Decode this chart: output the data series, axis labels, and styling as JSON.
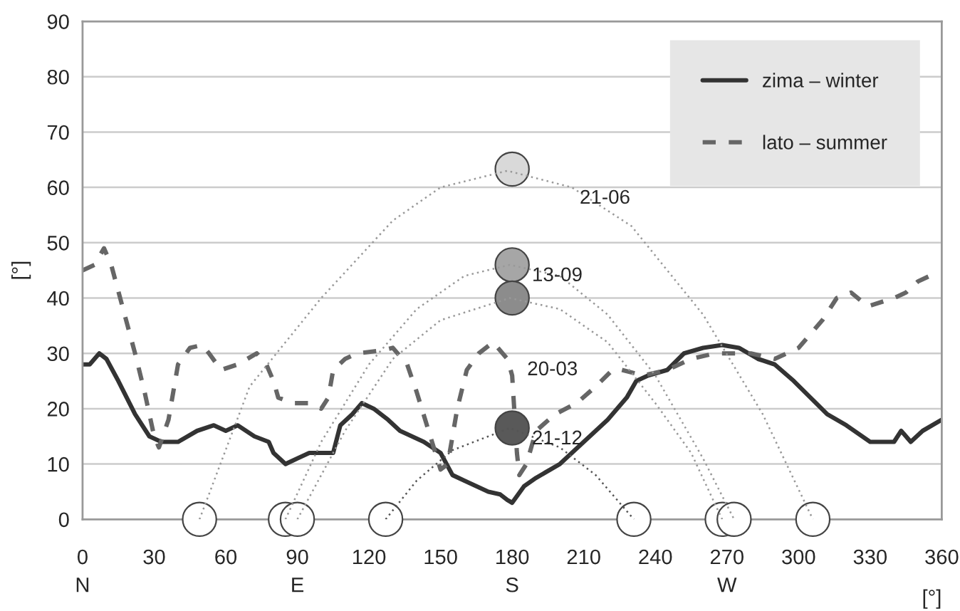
{
  "chart_data": {
    "type": "line",
    "xlabel": "[°]",
    "ylabel": "[°]",
    "xlim": [
      0,
      360
    ],
    "xticks": [
      0,
      30,
      60,
      90,
      120,
      150,
      180,
      210,
      240,
      270,
      300,
      330,
      360
    ],
    "ylim": [
      0,
      90
    ],
    "yticks": [
      0,
      10,
      20,
      30,
      40,
      50,
      60,
      70,
      80,
      90
    ],
    "grid": "y",
    "legend": "top right",
    "series": [
      {
        "name": "zima – winter",
        "line_style": "solid",
        "color": "#333333",
        "x": [
          0,
          3,
          7,
          10,
          15,
          22,
          28,
          33,
          40,
          48,
          55,
          60,
          65,
          72,
          78,
          80,
          85,
          90,
          95,
          105,
          108,
          113,
          117,
          122,
          128,
          133,
          143,
          150,
          155,
          160,
          165,
          170,
          175,
          178,
          180,
          185,
          190,
          200,
          210,
          220,
          228,
          232,
          237,
          245,
          252,
          260,
          268,
          275,
          283,
          290,
          298,
          305,
          312,
          320,
          330,
          340,
          343,
          347,
          352,
          360
        ],
        "values": [
          28,
          28,
          30,
          29,
          25,
          19,
          15,
          14,
          14,
          16,
          17,
          16,
          17,
          15,
          14,
          12,
          10,
          11,
          12,
          12,
          17,
          19,
          21,
          20,
          18,
          16,
          14,
          12,
          8,
          7,
          6,
          5,
          4.5,
          3.5,
          3,
          6,
          7.5,
          10,
          14,
          18,
          22,
          25,
          26,
          27,
          30,
          31,
          31.5,
          31,
          29,
          28,
          25,
          22,
          19,
          17,
          14,
          14,
          16,
          14,
          16,
          18
        ]
      },
      {
        "name": "lato – summer",
        "line_style": "dashed",
        "color": "#666666",
        "x": [
          0,
          5,
          9,
          12,
          17,
          22,
          26,
          30,
          32,
          36,
          40,
          45,
          50,
          53,
          58,
          65,
          73,
          77,
          80,
          82,
          88,
          95,
          100,
          103,
          105,
          110,
          115,
          125,
          130,
          132,
          136,
          140,
          145,
          150,
          153,
          157,
          161,
          166,
          172,
          176,
          178,
          180,
          182,
          183,
          186,
          190,
          198,
          207,
          215,
          222,
          226,
          235,
          245,
          255,
          265,
          280,
          290,
          300,
          310,
          316,
          322,
          329,
          340,
          345,
          350,
          355,
          360
        ],
        "values": [
          45,
          46,
          49,
          46,
          38,
          30,
          23,
          15,
          13,
          18,
          28,
          31,
          31.5,
          30,
          27,
          28,
          30,
          28,
          25,
          22,
          21,
          21,
          20,
          22,
          27,
          29,
          30,
          30.5,
          31,
          30,
          28,
          23,
          16,
          9,
          10,
          20,
          27,
          30,
          32,
          30,
          29,
          26,
          12,
          8,
          10,
          16,
          19,
          21,
          24,
          27,
          27,
          26,
          27,
          29,
          30,
          30,
          29,
          31,
          36,
          40,
          41,
          38.5,
          40,
          41,
          43,
          44,
          44
        ]
      },
      {
        "type": "line",
        "line_style": "dotted",
        "color": "#999999",
        "x": [
          49,
          70,
          100,
          130,
          150,
          178,
          205,
          230,
          260,
          285,
          306
        ],
        "values": [
          0,
          24,
          40,
          54,
          60,
          63,
          60,
          53,
          37,
          19,
          0
        ]
      },
      {
        "type": "line",
        "line_style": "dotted",
        "color": "#999999",
        "x": [
          85,
          100,
          120,
          140,
          160,
          179,
          200,
          220,
          240,
          260,
          273
        ],
        "values": [
          0,
          14,
          28,
          38,
          44,
          46,
          44,
          37,
          26,
          11,
          0
        ]
      },
      {
        "type": "line",
        "line_style": "dotted",
        "color": "#999999",
        "x": [
          90,
          110,
          130,
          150,
          179,
          200,
          220,
          240,
          255,
          268
        ],
        "values": [
          0,
          16,
          29,
          36,
          40,
          38,
          32,
          21,
          12,
          0
        ]
      },
      {
        "type": "line",
        "line_style": "dotted",
        "color": "#555555",
        "x": [
          127,
          140,
          155,
          179,
          200,
          215,
          231
        ],
        "values": [
          0,
          7,
          12.5,
          16.5,
          13,
          8,
          0
        ]
      },
      {
        "type": "scatter",
        "marker": "circle",
        "x": [
          49,
          85,
          90,
          127,
          231,
          268,
          273,
          306
        ],
        "values": [
          0,
          0,
          0,
          0,
          0,
          0,
          0,
          0
        ],
        "colors": [
          "#ffffff",
          "#ffffff",
          "#ffffff",
          "#ffffff",
          "#ffffff",
          "#ffffff",
          "#ffffff",
          "#ffffff"
        ]
      },
      {
        "type": "scatter",
        "marker": "circle",
        "x": [
          180,
          180,
          180,
          180
        ],
        "values": [
          63.3,
          46,
          40,
          16.5
        ],
        "colors": [
          "#d9d9d9",
          "#a6a6a6",
          "#8c8c8c",
          "#595959"
        ]
      }
    ],
    "annotations": [
      {
        "text": "21-06",
        "x": 200,
        "y": 60
      },
      {
        "text": "13-09",
        "x": 180,
        "y": 46
      },
      {
        "text": "20-03",
        "x": 178,
        "y": 29
      },
      {
        "text": "21-12",
        "x": 180,
        "y": 16.5
      },
      "N",
      "E",
      "S",
      "W"
    ]
  }
}
